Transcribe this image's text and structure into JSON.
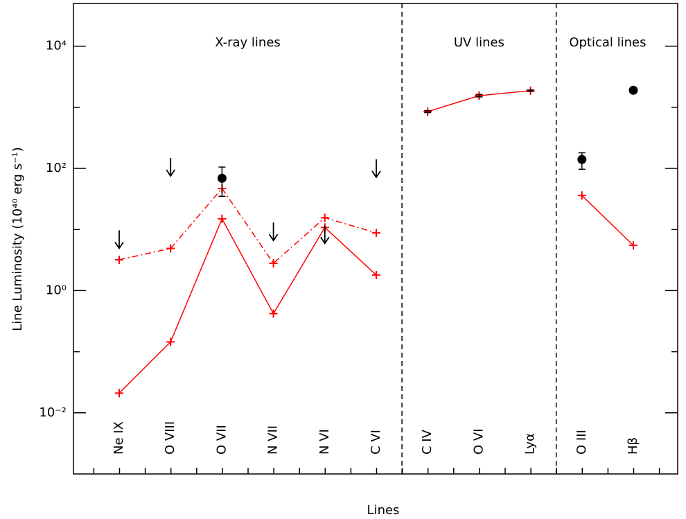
{
  "chart_data": {
    "type": "line",
    "x_label": "Lines",
    "y_label": "Line Luminosity (10⁴⁰ erg s⁻¹)",
    "log_y": true,
    "ylim": [
      0.001,
      50000
    ],
    "yticks": [
      {
        "value": 0.01,
        "label": "10⁻²"
      },
      {
        "value": 1,
        "label": "10⁰"
      },
      {
        "value": 100,
        "label": "10²"
      },
      {
        "value": 10000,
        "label": "10⁴"
      }
    ],
    "yminor": [
      0.1,
      10,
      1000
    ],
    "groups": [
      {
        "label": "X-ray lines",
        "categories": [
          "Ne IX",
          "O VIII",
          "O VII",
          "N VII",
          "N VI",
          "C VI"
        ],
        "series": [
          {
            "color": "#ff0000",
            "style": "solid",
            "values": [
              0.021,
              0.145,
              15,
              0.42,
              10.8,
              1.8
            ]
          },
          {
            "color": "#ff0000",
            "style": "dashdot",
            "values": [
              3.2,
              4.9,
              47,
              2.8,
              15.6,
              8.8
            ]
          }
        ],
        "observed": {
          "marker": "dot",
          "values": [
            null,
            null,
            69,
            null,
            null,
            null
          ],
          "low": [
            null,
            null,
            35,
            null,
            null,
            null
          ],
          "high": [
            null,
            null,
            105,
            null,
            null,
            null
          ]
        },
        "upper_limits": [
          9.7,
          148,
          null,
          13,
          11.7,
          141
        ]
      },
      {
        "label": "UV lines",
        "categories": [
          "C IV",
          "O VI",
          "Lyα"
        ],
        "series": [
          {
            "color": "#ff0000",
            "style": "solid",
            "values": [
              850,
              1550,
              1870
            ]
          }
        ],
        "observed": {
          "marker": "none",
          "values": [
            850,
            1550,
            1870
          ],
          "low": [
            820,
            1480,
            1820
          ],
          "high": [
            880,
            1620,
            1920
          ]
        }
      },
      {
        "label": "Optical lines",
        "categories": [
          "O III",
          "Hβ"
        ],
        "series": [
          {
            "color": "#ff0000",
            "style": "solid",
            "values": [
              36,
              5.5
            ]
          }
        ],
        "observed": {
          "marker": "dot",
          "values": [
            140,
            1900
          ],
          "low": [
            97,
            null
          ],
          "high": [
            180,
            null
          ]
        }
      }
    ]
  }
}
